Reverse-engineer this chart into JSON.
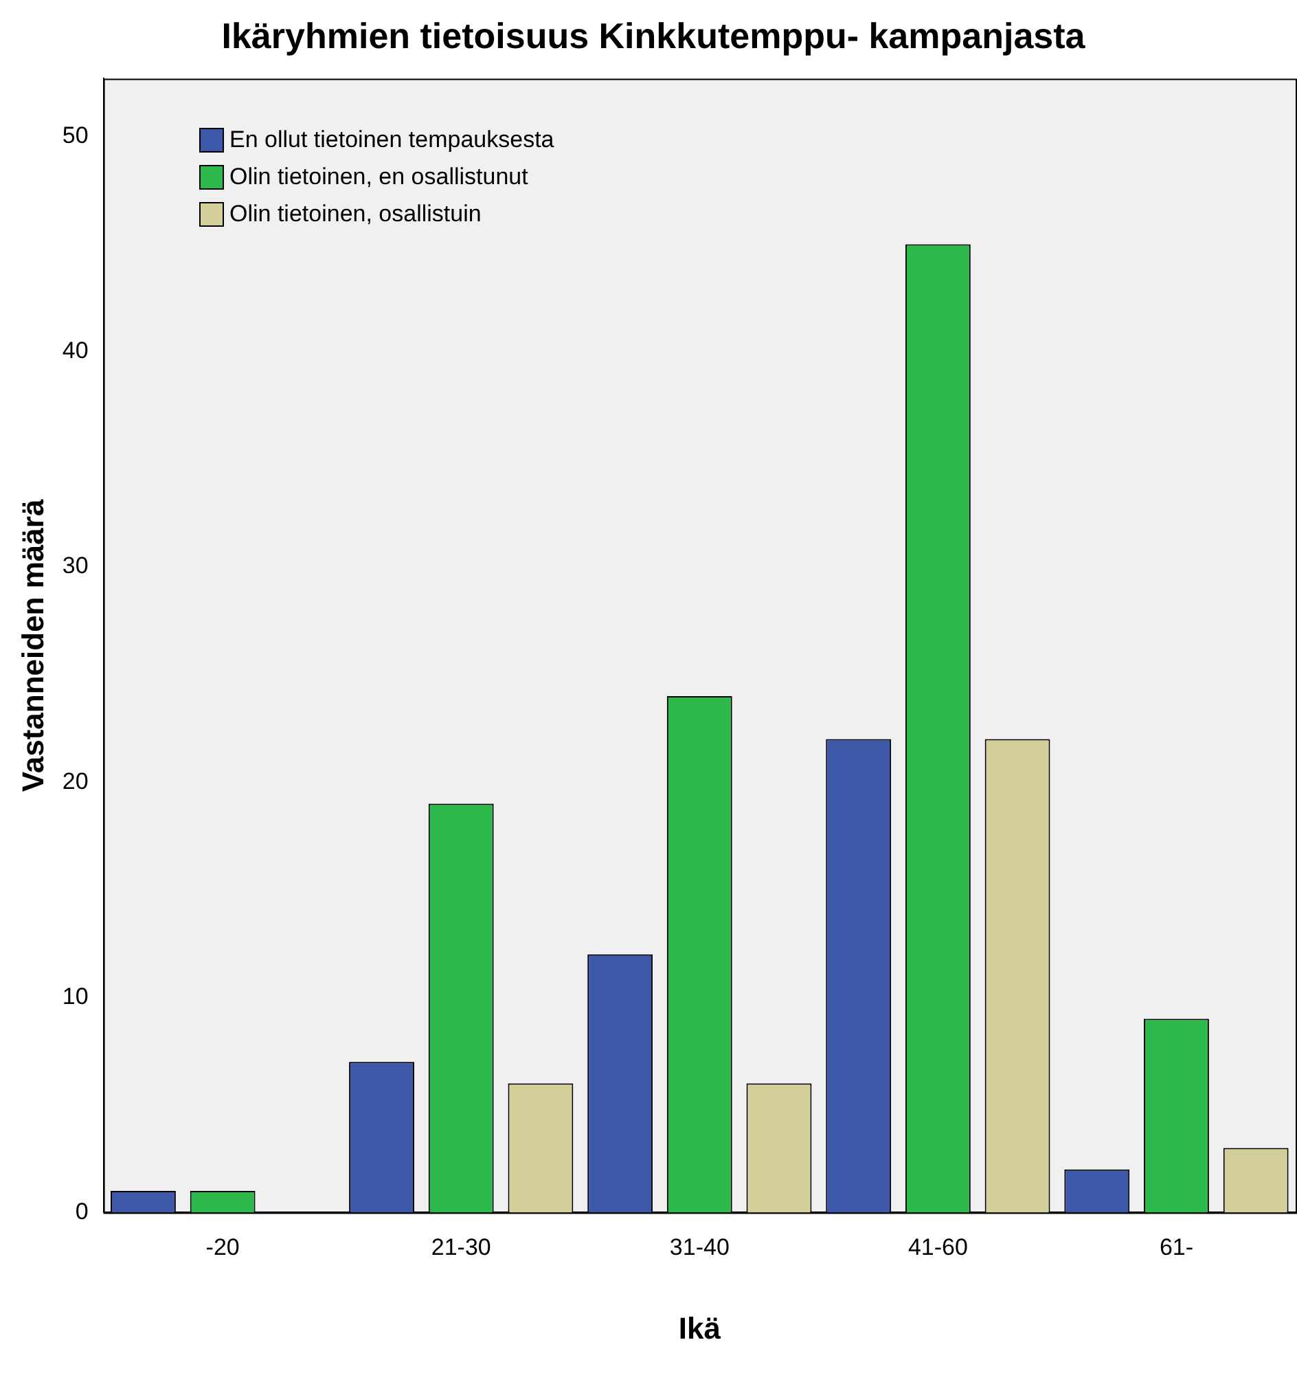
{
  "chart_data": {
    "type": "bar",
    "title": "Ikäryhmien tietoisuus Kinkkutemppu- kampanjasta",
    "xlabel": "Ikä",
    "ylabel": "Vastanneiden määrä",
    "categories": [
      "-20",
      "21-30",
      "31-40",
      "41-60",
      "61-"
    ],
    "series": [
      {
        "name": "En ollut tietoinen tempauksesta",
        "color": "#3d57a9",
        "values": [
          1,
          7,
          12,
          22,
          2
        ]
      },
      {
        "name": "Olin tietoinen, en osallistunut",
        "color": "#2db84b",
        "values": [
          1,
          19,
          24,
          45,
          9
        ]
      },
      {
        "name": "Olin tietoinen, osallistuin",
        "color": "#d4cf98",
        "values": [
          null,
          6,
          6,
          22,
          3
        ]
      }
    ],
    "ylim": [
      0,
      52.7
    ],
    "yticks": [
      0,
      10,
      20,
      30,
      40,
      50
    ],
    "grid": false,
    "legend": "top left"
  }
}
